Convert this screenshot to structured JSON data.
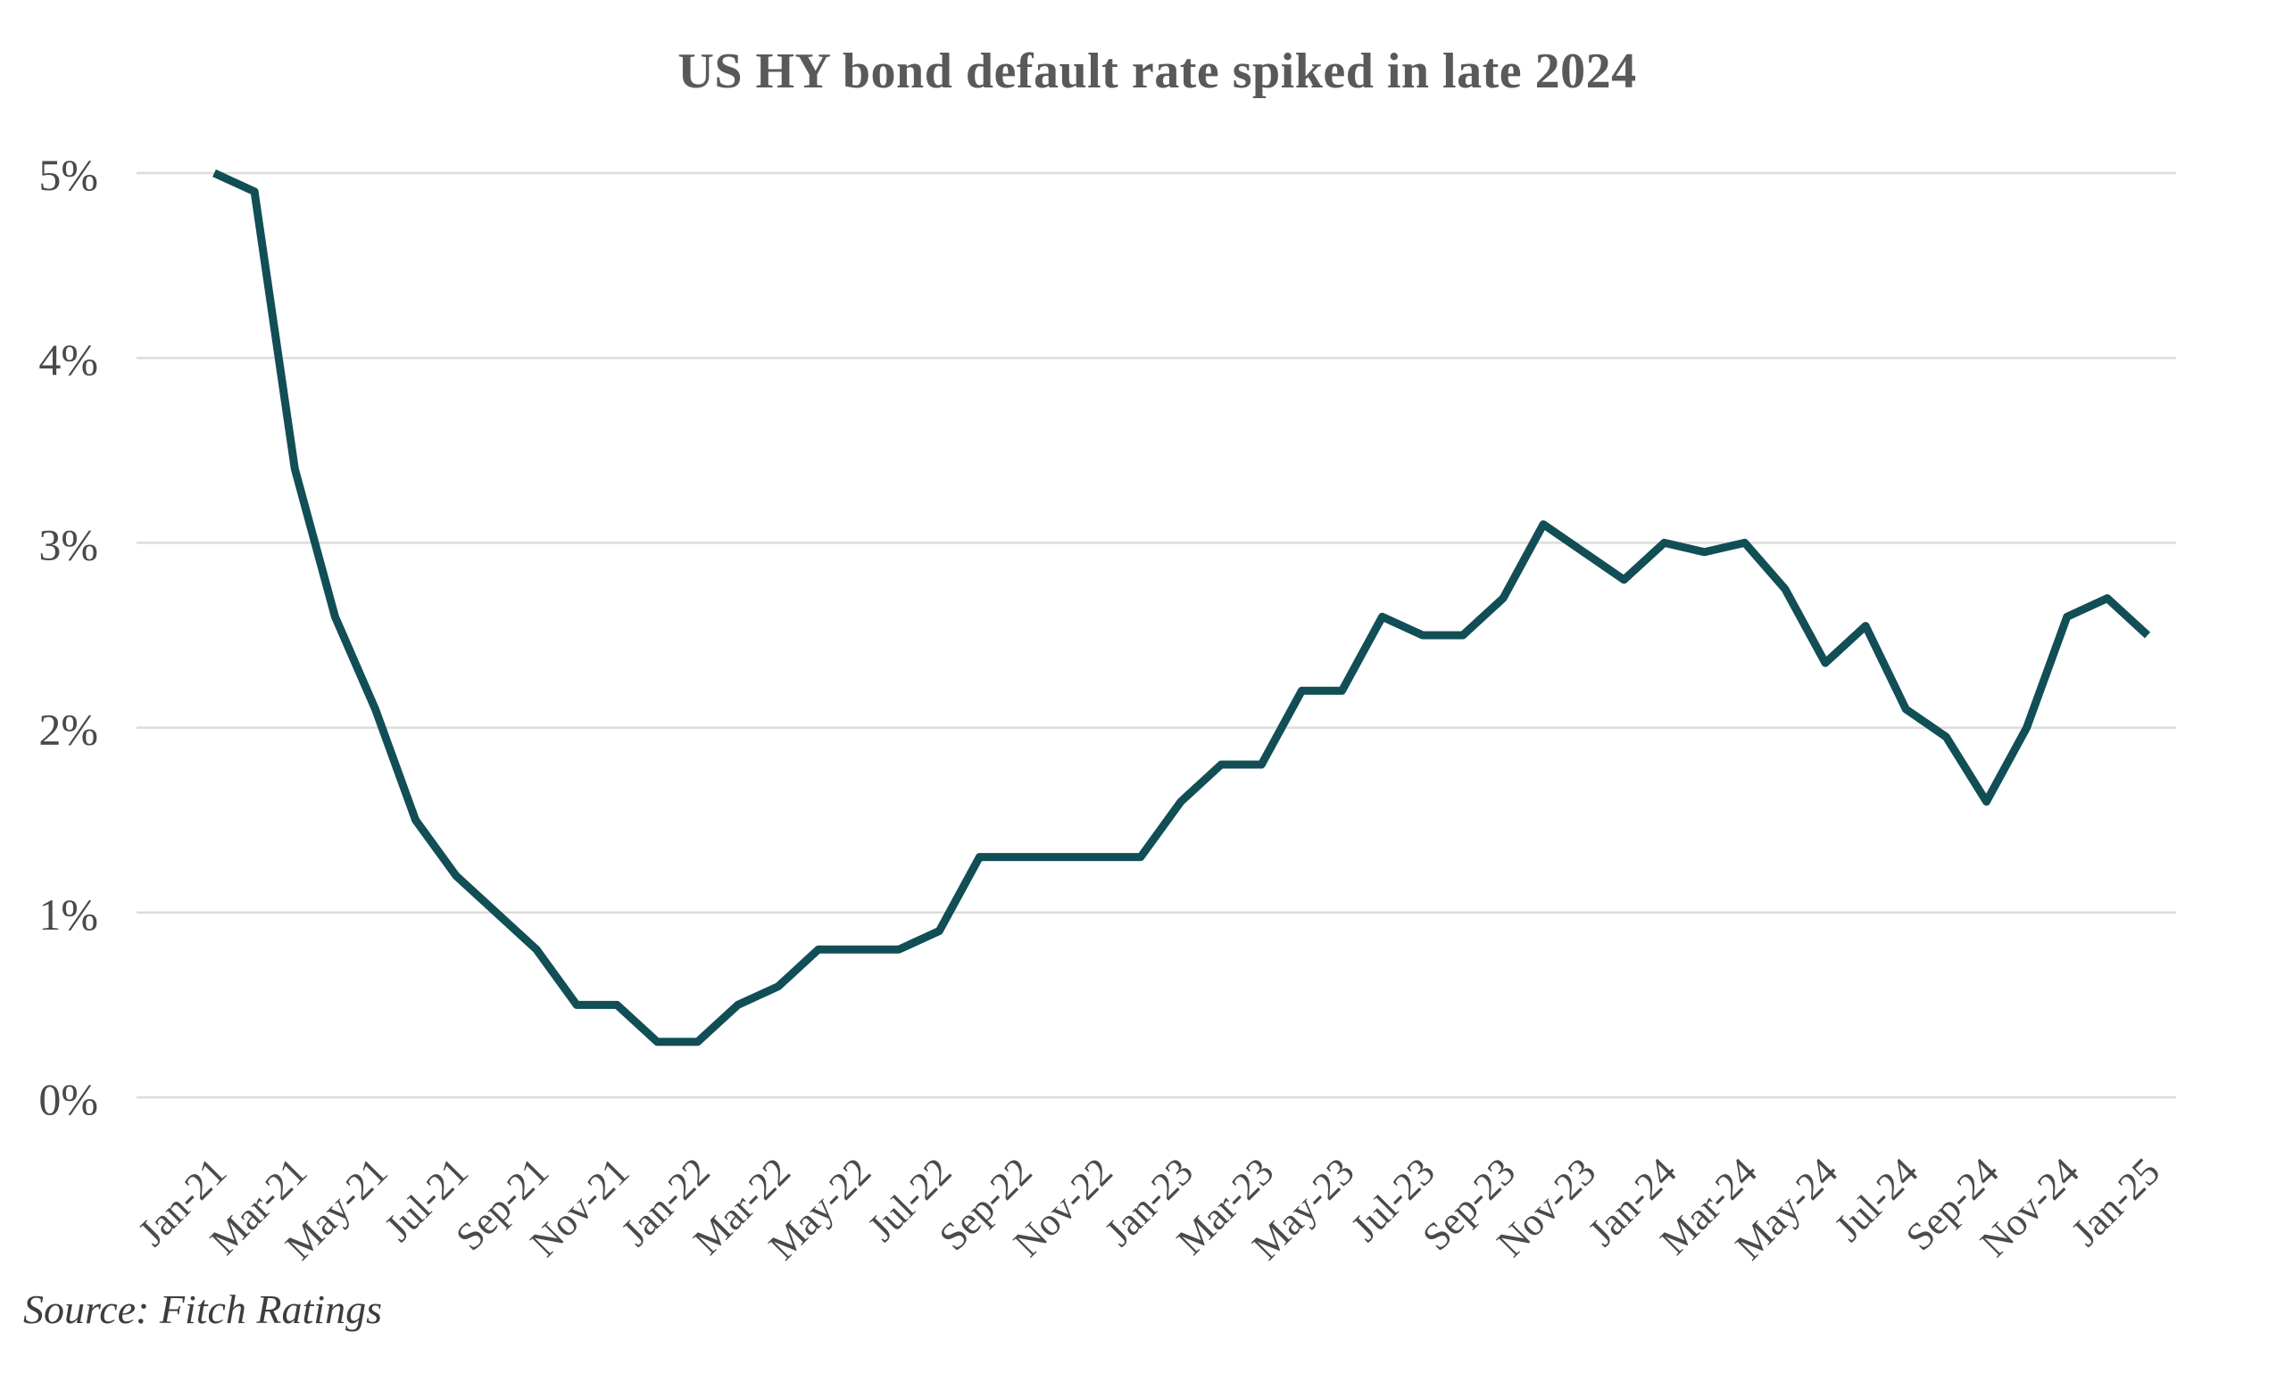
{
  "title": "US HY bond default rate spiked in late 2024",
  "source_note": "Source: Fitch Ratings",
  "colors": {
    "line": "#114e55",
    "grid": "#dcdcdc",
    "title_text": "#58595a",
    "axis_label_text": "#4a4a4a",
    "source_text": "#3d3d3d",
    "background": "#ffffff"
  },
  "chart_data": {
    "type": "line",
    "title": "US HY bond default rate spiked in late 2024",
    "series_name": "US HY bond default rate",
    "x": [
      "Jan-21",
      "Feb-21",
      "Mar-21",
      "Apr-21",
      "May-21",
      "Jun-21",
      "Jul-21",
      "Aug-21",
      "Sep-21",
      "Oct-21",
      "Nov-21",
      "Dec-21",
      "Jan-22",
      "Feb-22",
      "Mar-22",
      "Apr-22",
      "May-22",
      "Jun-22",
      "Jul-22",
      "Aug-22",
      "Sep-22",
      "Oct-22",
      "Nov-22",
      "Dec-22",
      "Jan-23",
      "Feb-23",
      "Mar-23",
      "Apr-23",
      "May-23",
      "Jun-23",
      "Jul-23",
      "Aug-23",
      "Sep-23",
      "Oct-23",
      "Nov-23",
      "Dec-23",
      "Jan-24",
      "Feb-24",
      "Mar-24",
      "Apr-24",
      "May-24",
      "Jun-24",
      "Jul-24",
      "Aug-24",
      "Sep-24",
      "Oct-24",
      "Nov-24",
      "Dec-24",
      "Jan-25"
    ],
    "values": [
      5.0,
      4.9,
      3.4,
      2.6,
      2.1,
      1.5,
      1.2,
      1.0,
      0.8,
      0.5,
      0.5,
      0.3,
      0.3,
      0.5,
      0.6,
      0.8,
      0.8,
      0.8,
      0.9,
      1.3,
      1.3,
      1.3,
      1.3,
      1.3,
      1.6,
      1.8,
      1.8,
      2.2,
      2.2,
      2.6,
      2.5,
      2.5,
      2.7,
      3.1,
      2.95,
      2.8,
      3.0,
      2.95,
      3.0,
      2.75,
      2.35,
      2.55,
      2.1,
      1.95,
      1.6,
      2.0,
      2.6,
      2.7,
      2.5
    ],
    "x_tick_labels": [
      "Jan-21",
      "Mar-21",
      "May-21",
      "Jul-21",
      "Sep-21",
      "Nov-21",
      "Jan-22",
      "Mar-22",
      "May-22",
      "Jul-22",
      "Sep-22",
      "Nov-22",
      "Jan-23",
      "Mar-23",
      "May-23",
      "Jul-23",
      "Sep-23",
      "Nov-23",
      "Jan-24",
      "Mar-24",
      "May-24",
      "Jul-24",
      "Sep-24",
      "Nov-24",
      "Jan-25"
    ],
    "x_tick_every_n_months": 2,
    "x_label_rotation_deg": -45,
    "y_tick_labels": [
      "5%",
      "4%",
      "3%",
      "2%",
      "1%",
      "0%"
    ],
    "y_tick_values": [
      5,
      4,
      3,
      2,
      1,
      0
    ],
    "ylim": [
      0,
      5
    ],
    "y_unit": "%",
    "grid": "horizontal-only",
    "legend_position": "none",
    "source": "Source: Fitch Ratings"
  }
}
